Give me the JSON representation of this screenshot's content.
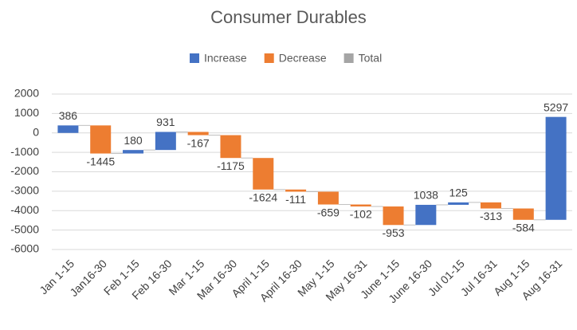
{
  "chart_data": {
    "type": "waterfall",
    "title": "Consumer Durables",
    "legend": [
      {
        "name": "Increase",
        "color": "#4472c4"
      },
      {
        "name": "Decrease",
        "color": "#ed7d31"
      },
      {
        "name": "Total",
        "color": "#a5a5a5"
      }
    ],
    "categories": [
      "Jan 1-15",
      "Jan16-30",
      "Feb 1-15",
      "Feb 16-30",
      "Mar 1-15",
      "Mar 16-30",
      "April 1-15",
      "April 16-30",
      "May 1-15",
      "May 16-31",
      "June 1-15",
      "June 16-30",
      "Jul 01-15",
      "Jul 16-31",
      "Aug 1-15",
      "Aug 16-31"
    ],
    "values": [
      386,
      -1445,
      180,
      931,
      -167,
      -1175,
      -1624,
      -111,
      -659,
      -102,
      -953,
      1038,
      125,
      -313,
      -584,
      5297
    ],
    "ylim": [
      -6000,
      2000
    ],
    "yticks": [
      -6000,
      -5000,
      -4000,
      -3000,
      -2000,
      -1000,
      0,
      1000,
      2000
    ],
    "grid": true
  }
}
